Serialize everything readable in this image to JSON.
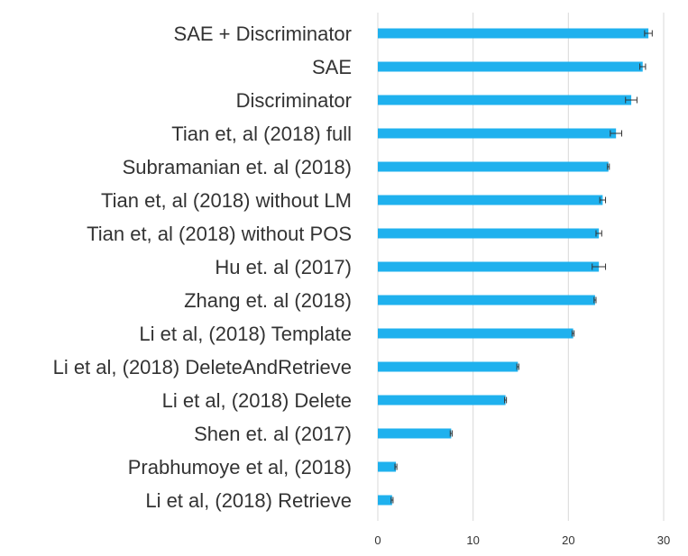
{
  "chart_data": {
    "type": "bar",
    "orientation": "horizontal",
    "title": "",
    "xlabel": "",
    "ylabel": "",
    "xlim": [
      0,
      30
    ],
    "x_ticks": [
      "0",
      "10",
      "20",
      "30"
    ],
    "grid": "vertical",
    "legend": "none",
    "bar_color": "#1fb1ee",
    "error_bar_color": "#333333",
    "categories": [
      "SAE + Discriminator",
      "SAE",
      "Discriminator",
      "Tian et, al (2018) full",
      "Subramanian et. al (2018)",
      "Tian et, al (2018) without LM",
      "Tian et, al (2018) without POS",
      "Hu et. al (2017)",
      "Zhang et. al (2018)",
      "Li et al, (2018) Template",
      "Li et al, (2018) DeleteAndRetrieve",
      "Li et al, (2018) Delete",
      "Shen et. al (2017)",
      "Prabhumoye et al, (2018)",
      "Li et al, (2018) Retrieve"
    ],
    "values": [
      28.4,
      27.8,
      26.6,
      25.0,
      24.2,
      23.6,
      23.2,
      23.2,
      22.8,
      20.5,
      14.7,
      13.4,
      7.7,
      1.9,
      1.5
    ],
    "errors": [
      0.4,
      0.3,
      0.6,
      0.6,
      0.1,
      0.3,
      0.3,
      0.7,
      0.1,
      0.1,
      0.1,
      0.1,
      0.1,
      0.1,
      0.1
    ]
  }
}
